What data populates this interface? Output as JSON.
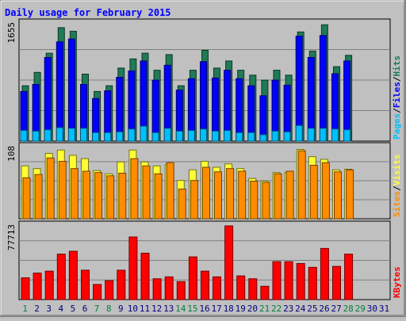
{
  "colors": {
    "background": "#c0c0c0",
    "plot_bg": "#c0c0c0",
    "title": "#0000ff",
    "hits": "#1f7a55",
    "files": "#0000ff",
    "pages": "#00bfff",
    "visits": "#ffff33",
    "sites": "#ff8c00",
    "kbytes": "#ff0000",
    "weekend_label": "#008040",
    "weekday_label": "#000080"
  },
  "chart_data": {
    "type": "bar",
    "title": "Daily usage for February 2015",
    "days": [
      "1",
      "2",
      "3",
      "4",
      "5",
      "6",
      "7",
      "8",
      "9",
      "10",
      "11",
      "12",
      "13",
      "14",
      "15",
      "16",
      "17",
      "18",
      "19",
      "20",
      "21",
      "22",
      "23",
      "24",
      "25",
      "26",
      "27",
      "28",
      "29",
      "30",
      "31"
    ],
    "weekend_days": [
      "1",
      "7",
      "8",
      "14",
      "15",
      "21",
      "22",
      "28",
      "29"
    ],
    "panels": [
      {
        "name": "usage",
        "max_label": "1655",
        "max": 1655,
        "legend": [
          {
            "text": "Pages",
            "color": "#00bfff"
          },
          {
            "text": "/",
            "color": "#000000"
          },
          {
            "text": "Files",
            "color": "#0000ff"
          },
          {
            "text": "/",
            "color": "#000000"
          },
          {
            "text": "Hits",
            "color": "#1f7a55"
          }
        ],
        "series": [
          {
            "name": "Hits",
            "color": "#1f7a55",
            "values": [
              780,
              970,
              1240,
              1600,
              1550,
              945,
              700,
              780,
              1030,
              1160,
              1240,
              1000,
              1220,
              780,
              1000,
              1280,
              1030,
              1130,
              1000,
              930,
              860,
              1000,
              930,
              1540,
              1270,
              1640,
              1050,
              1210,
              0,
              0,
              0
            ]
          },
          {
            "name": "Files",
            "color": "#0000ff",
            "values": [
              700,
              800,
              1180,
              1400,
              1440,
              800,
              600,
              710,
              900,
              990,
              1130,
              860,
              1070,
              720,
              880,
              1120,
              890,
              1000,
              880,
              780,
              640,
              860,
              790,
              1480,
              1180,
              1490,
              950,
              1130,
              0,
              0,
              0
            ]
          },
          {
            "name": "Pages",
            "color": "#00bfff",
            "values": [
              150,
              140,
              160,
              190,
              180,
              180,
              120,
              120,
              130,
              170,
              210,
              120,
              180,
              140,
              150,
              170,
              140,
              150,
              120,
              120,
              90,
              140,
              130,
              220,
              180,
              180,
              170,
              160,
              0,
              0,
              0
            ]
          }
        ]
      },
      {
        "name": "visits",
        "max_label": "108",
        "max": 108,
        "legend": [
          {
            "text": "Sites",
            "color": "#ff8c00"
          },
          {
            "text": "/",
            "color": "#000000"
          },
          {
            "text": "Visits",
            "color": "#ffff33"
          }
        ],
        "series": [
          {
            "name": "Visits",
            "color": "#ffff33",
            "values": [
              80,
              76,
              99,
              104,
              96,
              91,
              73,
              68,
              86,
              104,
              86,
              80,
              82,
              58,
              74,
              87,
              78,
              83,
              76,
              61,
              57,
              70,
              70,
              105,
              94,
              90,
              74,
              75,
              0,
              0,
              0
            ]
          },
          {
            "name": "Sites",
            "color": "#ff8c00",
            "values": [
              62,
              67,
              92,
              87,
              76,
              72,
              70,
              65,
              69,
              91,
              80,
              68,
              85,
              45,
              58,
              78,
              71,
              76,
              72,
              57,
              55,
              68,
              72,
              103,
              81,
              85,
              71,
              74,
              0,
              0,
              0
            ]
          }
        ]
      },
      {
        "name": "kbytes",
        "max_label": "77713",
        "max": 77713,
        "legend": [
          {
            "text": "KBytes",
            "color": "#ff0000"
          }
        ],
        "series": [
          {
            "name": "KBytes",
            "color": "#ff0000",
            "values": [
              23000,
              28000,
              30000,
              48000,
              51000,
              31000,
              16000,
              20000,
              31000,
              66000,
              49000,
              22000,
              24000,
              19000,
              45000,
              30000,
              24000,
              77713,
              25000,
              22000,
              14000,
              40000,
              40000,
              38000,
              34000,
              54000,
              35000,
              48000,
              0,
              0,
              0
            ]
          }
        ]
      }
    ]
  }
}
